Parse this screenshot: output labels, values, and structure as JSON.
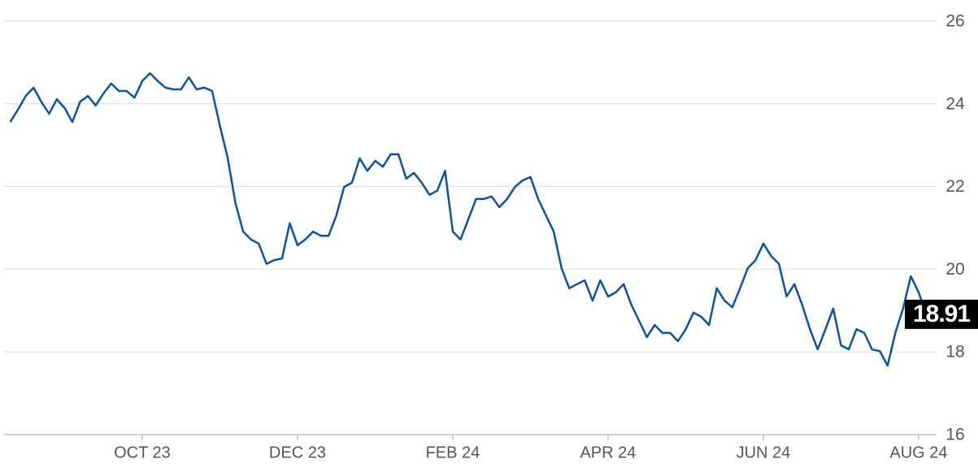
{
  "chart_data": {
    "type": "line",
    "categories": [
      null,
      null,
      null,
      null,
      null,
      null,
      null,
      null,
      null,
      null,
      null,
      null,
      null,
      null,
      null,
      null,
      null,
      "OCT 23",
      null,
      null,
      null,
      null,
      null,
      null,
      null,
      null,
      null,
      null,
      null,
      null,
      null,
      null,
      null,
      null,
      null,
      null,
      null,
      "DEC 23",
      null,
      null,
      null,
      null,
      null,
      null,
      null,
      null,
      null,
      null,
      null,
      null,
      null,
      null,
      null,
      null,
      null,
      null,
      null,
      "FEB 24",
      null,
      null,
      null,
      null,
      null,
      null,
      null,
      null,
      null,
      null,
      null,
      null,
      null,
      null,
      null,
      null,
      null,
      null,
      null,
      "APR 24",
      null,
      null,
      null,
      null,
      null,
      null,
      null,
      null,
      null,
      null,
      null,
      null,
      null,
      null,
      null,
      null,
      null,
      null,
      null,
      "JUN 24",
      null,
      null,
      null,
      null,
      null,
      null,
      null,
      null,
      null,
      null,
      null,
      null,
      null,
      null,
      null,
      null,
      null,
      null,
      null,
      "AUG 24",
      null
    ],
    "values": [
      23.56,
      23.86,
      24.19,
      24.39,
      24.05,
      23.76,
      24.11,
      23.9,
      23.56,
      24.05,
      24.19,
      23.96,
      24.25,
      24.49,
      24.31,
      24.31,
      24.15,
      24.55,
      24.74,
      24.55,
      24.39,
      24.35,
      24.35,
      24.64,
      24.35,
      24.39,
      24.31,
      23.47,
      22.7,
      21.6,
      20.91,
      20.72,
      20.62,
      20.13,
      20.22,
      20.26,
      21.11,
      20.58,
      20.72,
      20.91,
      20.81,
      20.81,
      21.3,
      21.99,
      22.09,
      22.68,
      22.38,
      22.62,
      22.48,
      22.78,
      22.78,
      22.19,
      22.33,
      22.09,
      21.8,
      21.9,
      22.38,
      20.91,
      20.72,
      21.21,
      21.7,
      21.7,
      21.76,
      21.5,
      21.7,
      21.99,
      22.15,
      22.23,
      21.7,
      21.3,
      20.91,
      20.03,
      19.54,
      19.64,
      19.73,
      19.24,
      19.73,
      19.34,
      19.44,
      19.64,
      19.14,
      18.75,
      18.36,
      18.65,
      18.46,
      18.46,
      18.26,
      18.55,
      18.95,
      18.85,
      18.65,
      19.54,
      19.24,
      19.08,
      19.54,
      20.03,
      20.22,
      20.62,
      20.32,
      20.13,
      19.34,
      19.64,
      19.14,
      18.55,
      18.06,
      18.55,
      19.05,
      18.16,
      18.06,
      18.55,
      18.46,
      18.06,
      18.02,
      17.67,
      18.46,
      19.05,
      19.83,
      19.44,
      18.91
    ],
    "color": "#0b52a0",
    "ylim": [
      16,
      26
    ],
    "yticks": [
      16,
      18,
      20,
      22,
      24,
      26
    ],
    "grid": true
  }
}
